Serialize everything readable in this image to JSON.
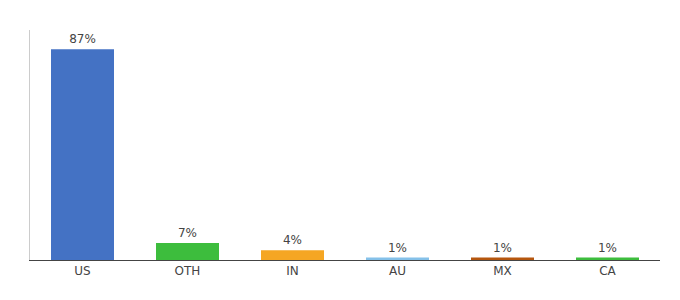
{
  "chart_data": {
    "type": "bar",
    "categories": [
      "US",
      "OTH",
      "IN",
      "AU",
      "MX",
      "CA"
    ],
    "values": [
      87,
      7,
      4,
      1,
      1,
      1
    ],
    "value_labels": [
      "87%",
      "7%",
      "4%",
      "1%",
      "1%",
      "1%"
    ],
    "colors": [
      "#4472C4",
      "#3DBD3D",
      "#F5A623",
      "#85C1E9",
      "#B5560E",
      "#3DBD3D"
    ],
    "ylim": [
      0,
      95
    ],
    "grid": false,
    "data_labels": true,
    "tick_labels": "x"
  }
}
